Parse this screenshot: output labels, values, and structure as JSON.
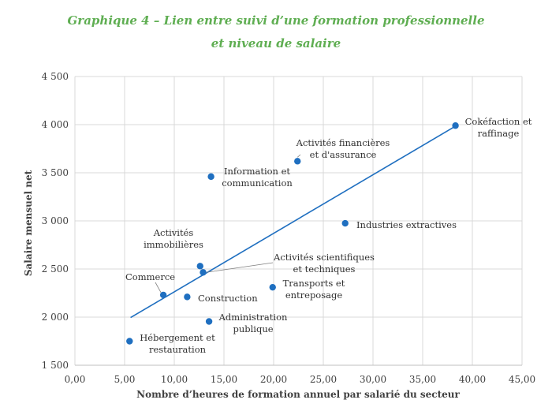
{
  "title_line1": "Graphique 4 – Lien entre suivi d’une formation professionnelle",
  "title_line2": "et niveau de salaire",
  "colors": {
    "title": "#5fae52",
    "points": "#1f6fc0",
    "trendline": "#1f6fc0",
    "grid": "#d9d9d9"
  },
  "chart_data": {
    "type": "scatter",
    "xlabel": "Nombre d’heures de formation annuel par salarié du secteur",
    "ylabel": "Salaire mensuel net",
    "xlim": [
      0,
      45
    ],
    "ylim": [
      1500,
      4500
    ],
    "x_ticks": [
      "0,00",
      "5,00",
      "10,00",
      "15,00",
      "20,00",
      "25,00",
      "30,00",
      "35,00",
      "40,00",
      "45,00"
    ],
    "y_ticks": [
      "1 500",
      "2 000",
      "2 500",
      "3 000",
      "3 500",
      "4 000",
      "4 500"
    ],
    "grid": true,
    "points": [
      {
        "label": [
          "Cokéfaction et",
          "raffinage"
        ],
        "x": 38.3,
        "y": 3990
      },
      {
        "label": [
          "Activités financières",
          "et d'assurance"
        ],
        "x": 22.4,
        "y": 3620
      },
      {
        "label": [
          "Information et",
          "communication"
        ],
        "x": 13.7,
        "y": 3460
      },
      {
        "label": [
          "Industries extractives"
        ],
        "x": 27.2,
        "y": 2975
      },
      {
        "label": [
          "Activités",
          "immobilières"
        ],
        "x": 12.6,
        "y": 2530
      },
      {
        "label": [
          "Activités scientifiques",
          "et techniques"
        ],
        "x": 12.9,
        "y": 2465
      },
      {
        "label": [
          "Commerce"
        ],
        "x": 8.9,
        "y": 2230
      },
      {
        "label": [
          "Construction"
        ],
        "x": 11.3,
        "y": 2210
      },
      {
        "label": [
          "Transports et",
          "entreposage"
        ],
        "x": 19.9,
        "y": 2310
      },
      {
        "label": [
          "Administration",
          "publique"
        ],
        "x": 13.5,
        "y": 1955
      },
      {
        "label": [
          "Hébergement et",
          "restauration"
        ],
        "x": 5.5,
        "y": 1750
      }
    ],
    "trendline": {
      "x": [
        5.6,
        38.4
      ],
      "y": [
        1995,
        3990
      ]
    }
  }
}
